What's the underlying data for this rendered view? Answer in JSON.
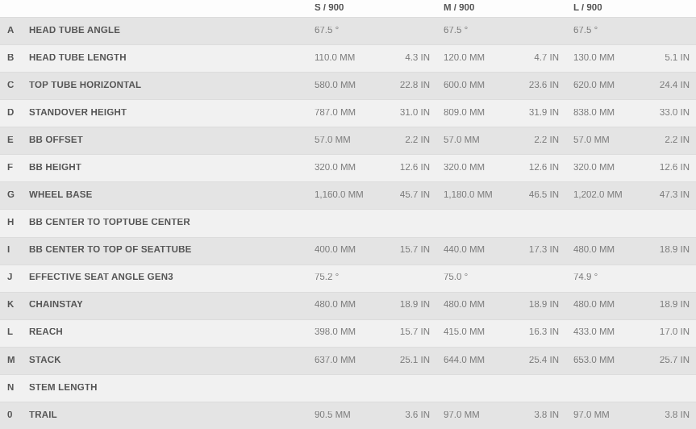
{
  "header": {
    "sizes": [
      "S / 900",
      "M / 900",
      "L / 900"
    ]
  },
  "rows": [
    {
      "letter": "A",
      "label": "HEAD TUBE ANGLE",
      "s_mm": "67.5 °",
      "s_in": "",
      "m_mm": "67.5 °",
      "m_in": "",
      "l_mm": "67.5 °",
      "l_in": ""
    },
    {
      "letter": "B",
      "label": "HEAD TUBE LENGTH",
      "s_mm": "110.0 MM",
      "s_in": "4.3 IN",
      "m_mm": "120.0 MM",
      "m_in": "4.7 IN",
      "l_mm": "130.0 MM",
      "l_in": "5.1 IN"
    },
    {
      "letter": "C",
      "label": "TOP TUBE HORIZONTAL",
      "s_mm": "580.0 MM",
      "s_in": "22.8 IN",
      "m_mm": "600.0 MM",
      "m_in": "23.6 IN",
      "l_mm": "620.0 MM",
      "l_in": "24.4 IN"
    },
    {
      "letter": "D",
      "label": "STANDOVER HEIGHT",
      "s_mm": "787.0 MM",
      "s_in": "31.0 IN",
      "m_mm": "809.0 MM",
      "m_in": "31.9 IN",
      "l_mm": "838.0 MM",
      "l_in": "33.0 IN"
    },
    {
      "letter": "E",
      "label": "BB OFFSET",
      "s_mm": "57.0 MM",
      "s_in": "2.2 IN",
      "m_mm": "57.0 MM",
      "m_in": "2.2 IN",
      "l_mm": "57.0 MM",
      "l_in": "2.2 IN"
    },
    {
      "letter": "F",
      "label": "BB HEIGHT",
      "s_mm": "320.0 MM",
      "s_in": "12.6 IN",
      "m_mm": "320.0 MM",
      "m_in": "12.6 IN",
      "l_mm": "320.0 MM",
      "l_in": "12.6 IN"
    },
    {
      "letter": "G",
      "label": "WHEEL BASE",
      "s_mm": "1,160.0 MM",
      "s_in": "45.7 IN",
      "m_mm": "1,180.0 MM",
      "m_in": "46.5 IN",
      "l_mm": "1,202.0 MM",
      "l_in": "47.3 IN"
    },
    {
      "letter": "H",
      "label": "BB CENTER TO TOPTUBE CENTER",
      "s_mm": "",
      "s_in": "",
      "m_mm": "",
      "m_in": "",
      "l_mm": "",
      "l_in": ""
    },
    {
      "letter": "I",
      "label": "BB CENTER TO TOP OF SEATTUBE",
      "s_mm": "400.0 MM",
      "s_in": "15.7 IN",
      "m_mm": "440.0 MM",
      "m_in": "17.3 IN",
      "l_mm": "480.0 MM",
      "l_in": "18.9 IN"
    },
    {
      "letter": "J",
      "label": "EFFECTIVE SEAT ANGLE GEN3",
      "s_mm": "75.2 °",
      "s_in": "",
      "m_mm": "75.0 °",
      "m_in": "",
      "l_mm": "74.9 °",
      "l_in": ""
    },
    {
      "letter": "K",
      "label": "CHAINSTAY",
      "s_mm": "480.0 MM",
      "s_in": "18.9 IN",
      "m_mm": "480.0 MM",
      "m_in": "18.9 IN",
      "l_mm": "480.0 MM",
      "l_in": "18.9 IN"
    },
    {
      "letter": "L",
      "label": "REACH",
      "s_mm": "398.0 MM",
      "s_in": "15.7 IN",
      "m_mm": "415.0 MM",
      "m_in": "16.3 IN",
      "l_mm": "433.0 MM",
      "l_in": "17.0 IN"
    },
    {
      "letter": "M",
      "label": "STACK",
      "s_mm": "637.0 MM",
      "s_in": "25.1 IN",
      "m_mm": "644.0 MM",
      "m_in": "25.4 IN",
      "l_mm": "653.0 MM",
      "l_in": "25.7 IN"
    },
    {
      "letter": "N",
      "label": "STEM LENGTH",
      "s_mm": "",
      "s_in": "",
      "m_mm": "",
      "m_in": "",
      "l_mm": "",
      "l_in": ""
    },
    {
      "letter": "0",
      "label": "TRAIL",
      "s_mm": "90.5 MM",
      "s_in": "3.6 IN",
      "m_mm": "97.0 MM",
      "m_in": "3.8 IN",
      "l_mm": "97.0 MM",
      "l_in": "3.8 IN"
    }
  ],
  "colors": {
    "row_dark": "#e4e4e4",
    "row_light": "#f1f1f1",
    "header_bg": "#fdfdfd",
    "label_text": "#555555",
    "value_text": "#7b7b7b"
  }
}
